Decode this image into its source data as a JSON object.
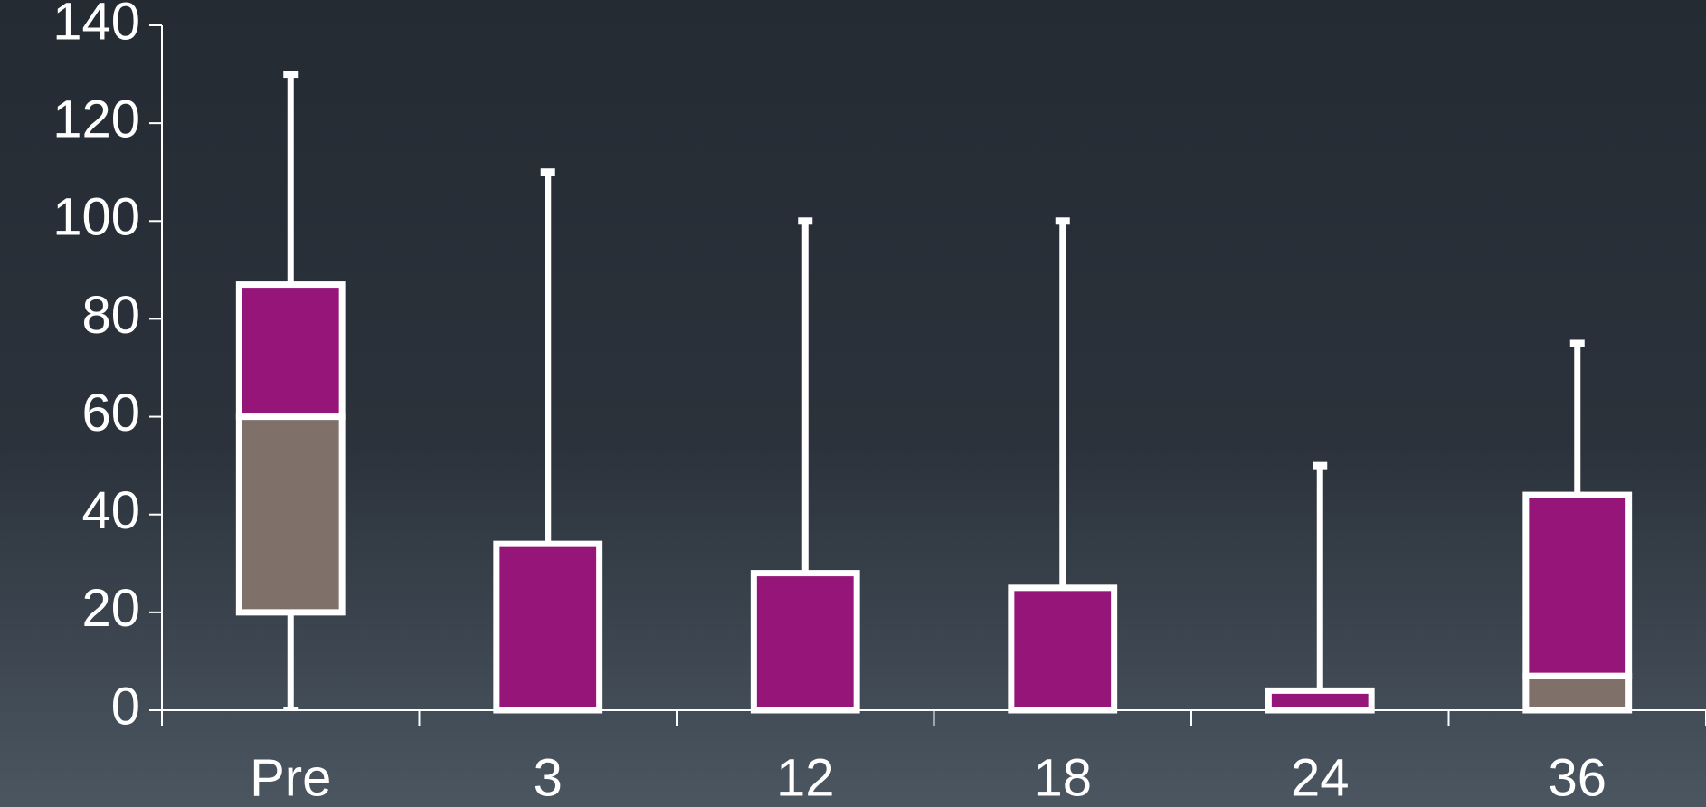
{
  "chart_data": {
    "type": "box",
    "categories": [
      "Pre",
      "3",
      "12",
      "18",
      "24",
      "36"
    ],
    "min": [
      0,
      0,
      0,
      0,
      0,
      0
    ],
    "q1": [
      20,
      0,
      0,
      0,
      0,
      0
    ],
    "median": [
      60,
      0,
      0,
      0,
      0,
      7
    ],
    "q3": [
      87,
      34,
      28,
      25,
      4,
      44
    ],
    "max": [
      130,
      110,
      100,
      100,
      50,
      75
    ],
    "box_colors": [
      "#7f7069",
      "#951578"
    ],
    "ylim": [
      0,
      140
    ],
    "yticks": [
      0,
      20,
      40,
      60,
      80,
      100,
      120,
      140
    ]
  }
}
